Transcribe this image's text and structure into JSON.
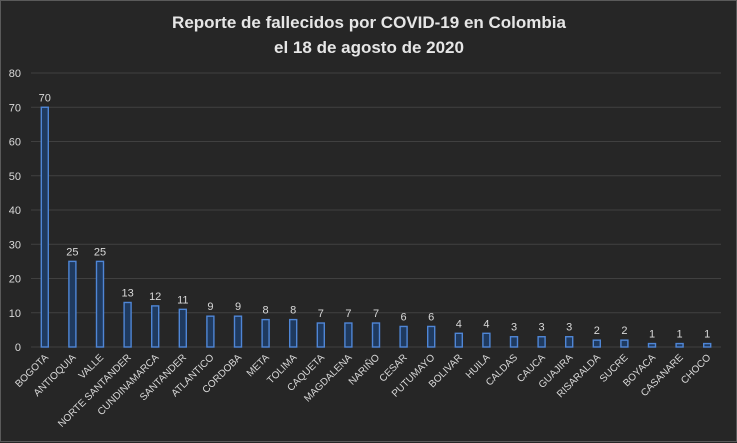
{
  "chart_data": {
    "type": "bar",
    "title_lines": [
      "Reporte de fallecidos por COVID-19 en Colombia",
      "el 18 de agosto de 2020"
    ],
    "categories": [
      "BOGOTA",
      "ANTIOQUIA",
      "VALLE",
      "NORTE SANTANDER",
      "CUNDINAMARCA",
      "SANTANDER",
      "ATLANTICO",
      "CORDOBA",
      "META",
      "TOLIMA",
      "CAQUETA",
      "MAGDALENA",
      "NARIÑO",
      "CESAR",
      "PUTUMAYO",
      "BOLIVAR",
      "HUILA",
      "CALDAS",
      "CAUCA",
      "GUAJIRA",
      "RISARALDA",
      "SUCRE",
      "BOYACA",
      "CASANARE",
      "CHOCO"
    ],
    "values": [
      70,
      25,
      25,
      13,
      12,
      11,
      9,
      9,
      8,
      8,
      7,
      7,
      7,
      6,
      6,
      4,
      4,
      3,
      3,
      3,
      2,
      2,
      1,
      1,
      1
    ],
    "yticks": [
      0,
      10,
      20,
      30,
      40,
      50,
      60,
      70,
      80
    ],
    "ylim": [
      0,
      80
    ],
    "grid": true,
    "bar_color": "#4f86d6",
    "background": "#262626"
  }
}
